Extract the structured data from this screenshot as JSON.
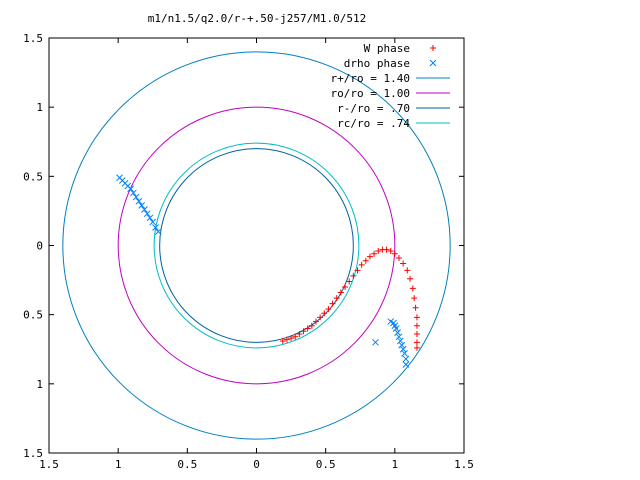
{
  "chart_data": {
    "type": "scatter",
    "title": "m1/n1.5/q2.0/r-+.50-j257/M1.0/512",
    "xlabel": "",
    "ylabel": "",
    "xlim": [
      -1.5,
      1.5
    ],
    "ylim": [
      -1.5,
      1.5
    ],
    "grid": false,
    "legend_position": "top-right",
    "x_ticks": [
      -1.5,
      -1,
      -0.5,
      0,
      0.5,
      1,
      1.5
    ],
    "x_tick_labels": [
      "1.5",
      "1",
      "0.5",
      "0",
      "0.5",
      "1",
      "1.5"
    ],
    "y_ticks": [
      1.5,
      1,
      0.5,
      0,
      -0.5,
      -1,
      -1.5
    ],
    "y_tick_labels": [
      "1.5",
      "1",
      "0.5",
      "0",
      "0.5",
      "1",
      "1.5"
    ],
    "circles": [
      {
        "name": "r+/ro = 1.40",
        "radius": 1.4,
        "color": "#0080c0"
      },
      {
        "name": "ro/ro = 1.00",
        "radius": 1.0,
        "color": "#c000c0"
      },
      {
        "name": "r-/ro = .70",
        "radius": 0.7,
        "color": "#0060a0"
      },
      {
        "name": "rc/ro = .74",
        "radius": 0.74,
        "color": "#00c0c0"
      }
    ],
    "series": [
      {
        "name": "W phase",
        "marker": "+",
        "color": "#ff0000",
        "points": [
          [
            0.19,
            -0.69
          ],
          [
            0.22,
            -0.68
          ],
          [
            0.25,
            -0.67
          ],
          [
            0.28,
            -0.66
          ],
          [
            0.31,
            -0.64
          ],
          [
            0.34,
            -0.62
          ],
          [
            0.37,
            -0.6
          ],
          [
            0.4,
            -0.58
          ],
          [
            0.43,
            -0.55
          ],
          [
            0.46,
            -0.52
          ],
          [
            0.49,
            -0.49
          ],
          [
            0.52,
            -0.46
          ],
          [
            0.55,
            -0.42
          ],
          [
            0.58,
            -0.38
          ],
          [
            0.61,
            -0.34
          ],
          [
            0.64,
            -0.3
          ],
          [
            0.67,
            -0.26
          ],
          [
            0.7,
            -0.22
          ],
          [
            0.73,
            -0.18
          ],
          [
            0.76,
            -0.14
          ],
          [
            0.79,
            -0.11
          ],
          [
            0.82,
            -0.08
          ],
          [
            0.85,
            -0.06
          ],
          [
            0.88,
            -0.04
          ],
          [
            0.91,
            -0.03
          ],
          [
            0.94,
            -0.03
          ],
          [
            0.97,
            -0.04
          ],
          [
            1.0,
            -0.06
          ],
          [
            1.03,
            -0.09
          ],
          [
            1.06,
            -0.13
          ],
          [
            1.09,
            -0.18
          ],
          [
            1.11,
            -0.24
          ],
          [
            1.13,
            -0.31
          ],
          [
            1.14,
            -0.38
          ],
          [
            1.15,
            -0.45
          ],
          [
            1.16,
            -0.52
          ],
          [
            1.16,
            -0.58
          ],
          [
            1.16,
            -0.64
          ],
          [
            1.16,
            -0.7
          ],
          [
            1.16,
            -0.74
          ]
        ]
      },
      {
        "name": "drho phase",
        "marker": "x",
        "color": "#0080ff",
        "points": [
          [
            -0.99,
            0.49
          ],
          [
            -0.97,
            0.47
          ],
          [
            -0.95,
            0.45
          ],
          [
            -0.93,
            0.43
          ],
          [
            -0.91,
            0.41
          ],
          [
            -0.89,
            0.38
          ],
          [
            -0.87,
            0.35
          ],
          [
            -0.85,
            0.32
          ],
          [
            -0.83,
            0.29
          ],
          [
            -0.81,
            0.26
          ],
          [
            -0.79,
            0.23
          ],
          [
            -0.77,
            0.2
          ],
          [
            -0.75,
            0.17
          ],
          [
            -0.73,
            0.13
          ],
          [
            -0.71,
            0.1
          ],
          [
            0.97,
            -0.55
          ],
          [
            0.99,
            -0.56
          ],
          [
            1.0,
            -0.58
          ],
          [
            1.01,
            -0.6
          ],
          [
            1.02,
            -0.63
          ],
          [
            1.03,
            -0.66
          ],
          [
            1.04,
            -0.69
          ],
          [
            1.05,
            -0.72
          ],
          [
            1.06,
            -0.75
          ],
          [
            1.07,
            -0.78
          ],
          [
            1.08,
            -0.82
          ],
          [
            1.08,
            -0.86
          ],
          [
            0.86,
            -0.7
          ]
        ]
      }
    ]
  }
}
